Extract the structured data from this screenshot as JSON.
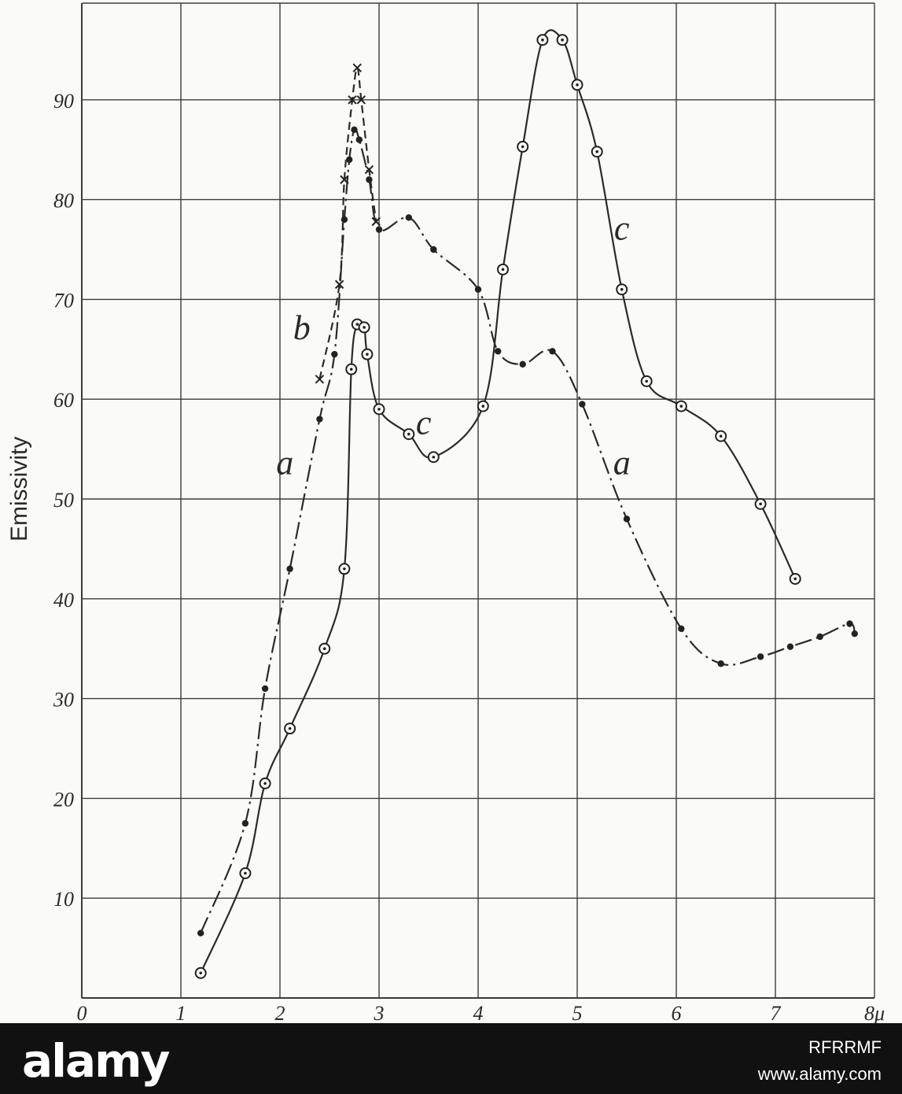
{
  "chart_data": {
    "type": "line",
    "xlabel": "",
    "ylabel": "Emissivity",
    "xlim": [
      0,
      8
    ],
    "ylim": [
      0,
      100
    ],
    "x_ticks": [
      "0",
      "1",
      "2",
      "3",
      "4",
      "5",
      "6",
      "7",
      "8μ"
    ],
    "y_ticks": [
      {
        "value": 10,
        "label": "10"
      },
      {
        "value": 20,
        "label": "20"
      },
      {
        "value": 30,
        "label": "30"
      },
      {
        "value": 40,
        "label": "40"
      },
      {
        "value": 50,
        "label": "50"
      },
      {
        "value": 60,
        "label": "60"
      },
      {
        "value": 70,
        "label": "70"
      },
      {
        "value": 80,
        "label": "80"
      },
      {
        "value": 90,
        "label": "90"
      }
    ],
    "grid": true,
    "series": [
      {
        "name": "a",
        "marker": "dot",
        "line": "dash-dot",
        "points": [
          [
            1.2,
            6.5
          ],
          [
            1.65,
            17.5
          ],
          [
            1.85,
            31
          ],
          [
            2.1,
            43
          ],
          [
            2.4,
            58
          ],
          [
            2.55,
            64.5
          ],
          [
            2.65,
            78
          ],
          [
            2.7,
            84
          ],
          [
            2.75,
            87
          ],
          [
            2.8,
            86
          ],
          [
            2.9,
            82
          ],
          [
            3.0,
            77
          ],
          [
            3.3,
            78.2
          ],
          [
            3.55,
            75
          ],
          [
            4.0,
            71
          ],
          [
            4.2,
            64.8
          ],
          [
            4.45,
            63.5
          ],
          [
            4.75,
            64.8
          ],
          [
            5.05,
            59.5
          ],
          [
            5.5,
            48
          ],
          [
            6.05,
            37
          ],
          [
            6.45,
            33.5
          ],
          [
            6.85,
            34.2
          ],
          [
            7.15,
            35.2
          ],
          [
            7.45,
            36.2
          ],
          [
            7.75,
            37.5
          ],
          [
            7.8,
            36.5
          ]
        ]
      },
      {
        "name": "b",
        "marker": "cross",
        "line": "dash",
        "points": [
          [
            2.4,
            62
          ],
          [
            2.6,
            71.5
          ],
          [
            2.65,
            82
          ],
          [
            2.73,
            90
          ],
          [
            2.78,
            93.2
          ],
          [
            2.82,
            90
          ],
          [
            2.9,
            83
          ],
          [
            2.97,
            77.8
          ]
        ]
      },
      {
        "name": "c",
        "marker": "circle-dot",
        "line": "solid",
        "points": [
          [
            1.2,
            2.5
          ],
          [
            1.65,
            12.5
          ],
          [
            1.85,
            21.5
          ],
          [
            2.1,
            27
          ],
          [
            2.45,
            35
          ],
          [
            2.65,
            43
          ],
          [
            2.72,
            63
          ],
          [
            2.78,
            67.5
          ],
          [
            2.85,
            67.2
          ],
          [
            2.88,
            64.5
          ],
          [
            3.0,
            59
          ],
          [
            3.3,
            56.5
          ],
          [
            3.55,
            54.2
          ],
          [
            4.05,
            59.3
          ],
          [
            4.25,
            73
          ],
          [
            4.45,
            85.3
          ],
          [
            4.65,
            96
          ],
          [
            4.85,
            96
          ],
          [
            5.0,
            91.5
          ],
          [
            5.2,
            84.8
          ],
          [
            5.45,
            71
          ],
          [
            5.7,
            61.8
          ],
          [
            6.05,
            59.3
          ],
          [
            6.45,
            56.3
          ],
          [
            6.85,
            49.5
          ],
          [
            7.2,
            42
          ]
        ]
      }
    ],
    "curve_labels": [
      {
        "series": "b",
        "text": "b",
        "x": 2.22,
        "y": 66
      },
      {
        "series": "a",
        "text": "a",
        "x": 2.05,
        "y": 52.5
      },
      {
        "series": "c",
        "text": "c",
        "x": 3.45,
        "y": 56.5
      },
      {
        "series": "c",
        "text": "c",
        "x": 5.45,
        "y": 76
      },
      {
        "series": "a",
        "text": "a",
        "x": 5.45,
        "y": 52.5
      }
    ]
  },
  "footer": {
    "logo": "alamy",
    "image_code": "RFRRMF",
    "url": "www.alamy.com"
  }
}
